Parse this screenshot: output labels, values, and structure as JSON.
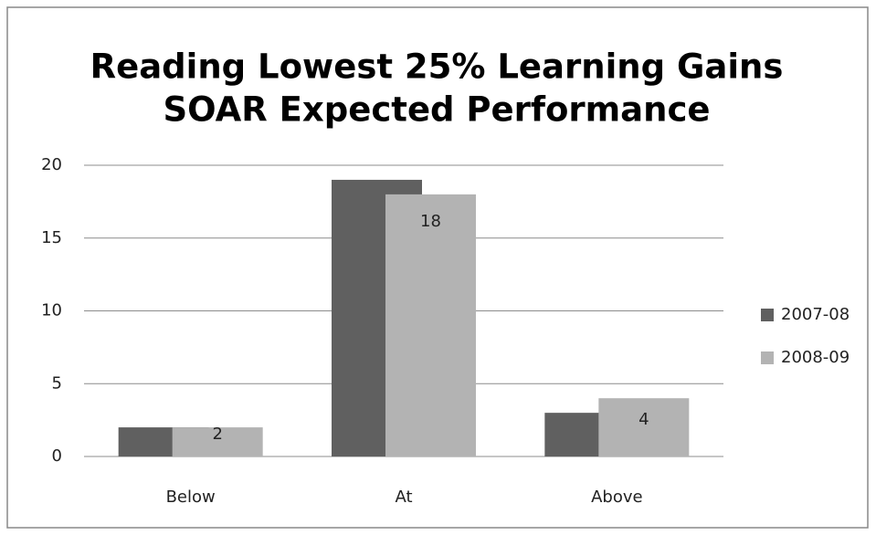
{
  "chart_data": {
    "type": "bar",
    "title": [
      "Reading Lowest 25% Learning Gains",
      "SOAR Expected Performance"
    ],
    "categories": [
      "Below",
      "At",
      "Above"
    ],
    "series": [
      {
        "name": "2007-08",
        "color": "#606060",
        "values": [
          2,
          19,
          3
        ]
      },
      {
        "name": "2008-09",
        "color": "#b3b3b3",
        "values": [
          2,
          18,
          4
        ],
        "show_labels": true
      }
    ],
    "ylim": [
      0,
      20
    ],
    "yticks": [
      0,
      5,
      10,
      15,
      20
    ],
    "grid": true,
    "legend": "right"
  }
}
